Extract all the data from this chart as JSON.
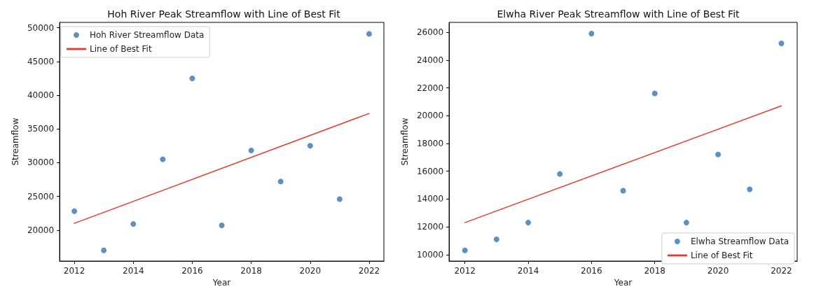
{
  "chart_data": [
    {
      "type": "scatter",
      "title": "Hoh River Peak Streamflow with Line of Best Fit",
      "xlabel": "Year",
      "ylabel": "Streamflow",
      "xlim": [
        2011.5,
        2022.5
      ],
      "xticks": [
        2012,
        2014,
        2016,
        2018,
        2020,
        2022
      ],
      "ylim": [
        15400,
        50800
      ],
      "yticks": [
        20000,
        25000,
        30000,
        35000,
        40000,
        45000,
        50000
      ],
      "grid": false,
      "legend": "top left",
      "series": [
        {
          "name": "Hoh River Streamflow Data",
          "color": "#3274b0",
          "marker": "circle",
          "x": [
            2012,
            2013,
            2014,
            2015,
            2016,
            2017,
            2018,
            2019,
            2020,
            2021,
            2022
          ],
          "values": [
            22800,
            17000,
            20900,
            30500,
            42500,
            20700,
            31800,
            27200,
            32500,
            24600,
            49100
          ]
        },
        {
          "type": "line",
          "name": "Line of Best Fit",
          "color": "#e8392c",
          "line_style": "solid",
          "x": [
            2012,
            2022
          ],
          "values": [
            21000,
            37300
          ]
        }
      ]
    },
    {
      "type": "scatter",
      "title": "Elwha River Peak Streamflow with Line of Best Fit",
      "xlabel": "Year",
      "ylabel": "Streamflow",
      "xlim": [
        2011.5,
        2022.5
      ],
      "xticks": [
        2012,
        2014,
        2016,
        2018,
        2020,
        2022
      ],
      "ylim": [
        9530,
        26710
      ],
      "yticks": [
        10000,
        12000,
        14000,
        16000,
        18000,
        20000,
        22000,
        24000,
        26000
      ],
      "grid": false,
      "legend": "bottom right",
      "series": [
        {
          "name": "Elwha Streamflow Data",
          "color": "#3274b0",
          "marker": "circle",
          "x": [
            2012,
            2013,
            2014,
            2015,
            2016,
            2017,
            2018,
            2019,
            2020,
            2021,
            2022
          ],
          "values": [
            10300,
            11100,
            12300,
            15800,
            25900,
            14600,
            21600,
            12300,
            17200,
            14700,
            25200
          ]
        },
        {
          "type": "line",
          "name": "Line of Best Fit",
          "color": "#e8392c",
          "line_style": "solid",
          "x": [
            2012,
            2022
          ],
          "values": [
            12300,
            20700
          ]
        }
      ]
    }
  ]
}
